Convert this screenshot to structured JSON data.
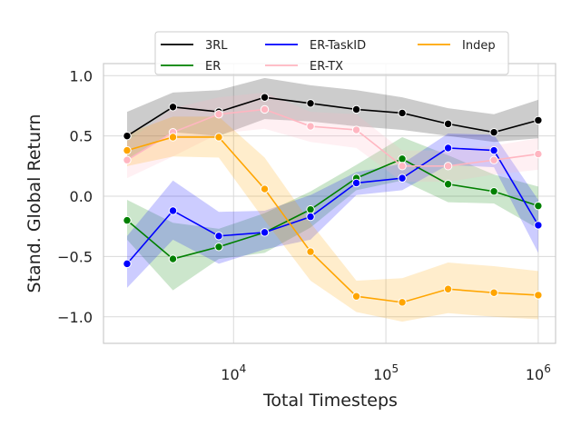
{
  "chart_data": {
    "type": "line",
    "title": "",
    "xlabel": "Total Timesteps",
    "ylabel": "Stand. Global Return",
    "xscale": "log",
    "xlim": [
      1400,
      1300000
    ],
    "ylim": [
      -1.22,
      1.1
    ],
    "grid": true,
    "legend_position": "top-center",
    "x_ticks": [
      {
        "value": 10000,
        "base": "10",
        "exp": "4"
      },
      {
        "value": 100000,
        "base": "10",
        "exp": "5"
      },
      {
        "value": 1000000,
        "base": "10",
        "exp": "6"
      }
    ],
    "y_ticks": [
      {
        "value": 1.0,
        "label": "1.0"
      },
      {
        "value": 0.5,
        "label": "0.5"
      },
      {
        "value": 0.0,
        "label": "0.0"
      },
      {
        "value": -0.5,
        "label": "−0.5"
      },
      {
        "value": -1.0,
        "label": "−1.0"
      }
    ],
    "x": [
      2000,
      4000,
      8000,
      16000,
      32000,
      64000,
      128000,
      256000,
      512000,
      1000000
    ],
    "series": [
      {
        "name": "3RL",
        "color": "#000000",
        "values": [
          0.5,
          0.74,
          0.7,
          0.82,
          0.77,
          0.72,
          0.69,
          0.6,
          0.53,
          0.63
        ],
        "lower": [
          0.3,
          0.53,
          0.5,
          0.64,
          0.62,
          0.58,
          0.55,
          0.5,
          0.45,
          0.48
        ],
        "upper": [
          0.7,
          0.86,
          0.88,
          0.98,
          0.92,
          0.88,
          0.82,
          0.73,
          0.68,
          0.8
        ]
      },
      {
        "name": "ER",
        "color": "#008000",
        "values": [
          -0.2,
          -0.52,
          -0.42,
          -0.3,
          -0.11,
          0.15,
          0.31,
          0.1,
          0.04,
          -0.08
        ],
        "lower": [
          -0.36,
          -0.78,
          -0.52,
          -0.47,
          -0.26,
          0.05,
          0.13,
          -0.05,
          -0.06,
          -0.27
        ],
        "upper": [
          -0.03,
          -0.22,
          -0.27,
          -0.14,
          0.04,
          0.26,
          0.49,
          0.34,
          0.18,
          0.08
        ]
      },
      {
        "name": "ER-TaskID",
        "color": "#0000ff",
        "values": [
          -0.56,
          -0.12,
          -0.33,
          -0.3,
          -0.17,
          0.11,
          0.15,
          0.4,
          0.38,
          -0.24
        ],
        "lower": [
          -0.76,
          -0.36,
          -0.56,
          -0.44,
          -0.36,
          0.01,
          0.05,
          0.26,
          0.24,
          -0.47
        ],
        "upper": [
          -0.33,
          0.13,
          -0.13,
          -0.12,
          0.01,
          0.2,
          0.27,
          0.52,
          0.51,
          -0.03
        ]
      },
      {
        "name": "ER-TX",
        "color": "#ffb6c1",
        "values": [
          0.3,
          0.53,
          0.68,
          0.72,
          0.58,
          0.55,
          0.25,
          0.25,
          0.3,
          0.35
        ],
        "lower": [
          0.15,
          0.33,
          0.52,
          0.56,
          0.45,
          0.4,
          0.12,
          0.12,
          0.18,
          0.22
        ],
        "upper": [
          0.45,
          0.73,
          0.82,
          0.86,
          0.7,
          0.68,
          0.38,
          0.38,
          0.42,
          0.48
        ]
      },
      {
        "name": "Indep",
        "color": "#ffa500",
        "values": [
          0.38,
          0.49,
          0.49,
          0.06,
          -0.46,
          -0.83,
          -0.88,
          -0.77,
          -0.8,
          -0.82
        ],
        "lower": [
          0.25,
          0.33,
          0.32,
          -0.2,
          -0.7,
          -0.96,
          -1.04,
          -0.97,
          -1.0,
          -1.02
        ],
        "upper": [
          0.52,
          0.66,
          0.66,
          0.32,
          -0.22,
          -0.7,
          -0.68,
          -0.55,
          -0.58,
          -0.62
        ]
      }
    ]
  }
}
